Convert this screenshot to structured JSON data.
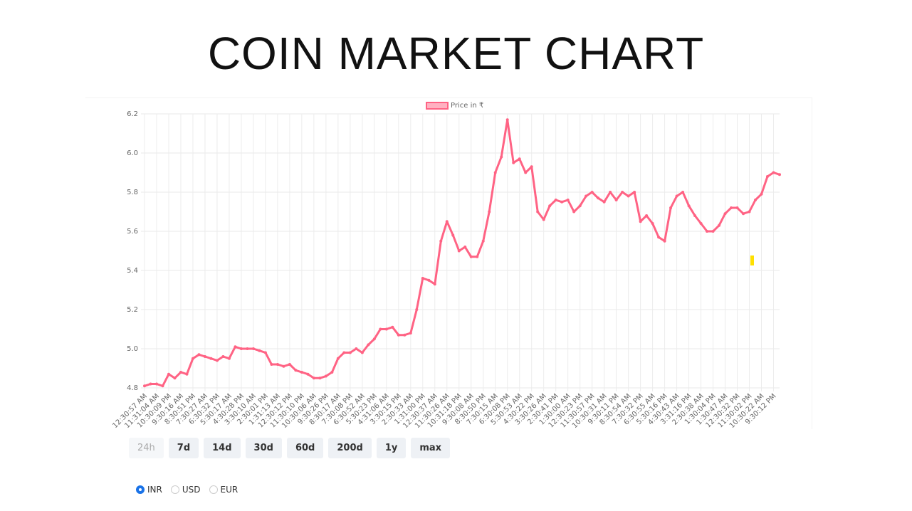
{
  "header": {
    "title": "COIN MARKET CHART"
  },
  "chart_data": {
    "type": "line",
    "series": [
      {
        "name": "Price in ₹",
        "color": "#ff6384",
        "values": [
          4.81,
          4.82,
          4.82,
          4.81,
          4.87,
          4.85,
          4.88,
          4.87,
          4.95,
          4.97,
          4.96,
          4.95,
          4.94,
          4.96,
          4.95,
          5.01,
          5.0,
          5.0,
          5.0,
          4.99,
          4.98,
          4.92,
          4.92,
          4.91,
          4.92,
          4.89,
          4.88,
          4.87,
          4.85,
          4.85,
          4.86,
          4.88,
          4.95,
          4.98,
          4.98,
          5.0,
          4.98,
          5.02,
          5.05,
          5.1,
          5.1,
          5.11,
          5.07,
          5.07,
          5.08,
          5.2,
          5.36,
          5.35,
          5.33,
          5.55,
          5.65,
          5.58,
          5.5,
          5.52,
          5.47,
          5.47,
          5.55,
          5.7,
          5.9,
          5.98,
          6.17,
          5.95,
          5.97,
          5.9,
          5.93,
          5.7,
          5.66,
          5.73,
          5.76,
          5.75,
          5.76,
          5.7,
          5.73,
          5.78,
          5.8,
          5.77,
          5.75,
          5.8,
          5.76,
          5.8,
          5.78,
          5.8,
          5.65,
          5.68,
          5.64,
          5.57,
          5.55,
          5.72,
          5.78,
          5.8,
          5.73,
          5.68,
          5.64,
          5.6,
          5.6,
          5.63,
          5.69,
          5.72,
          5.72,
          5.69,
          5.7,
          5.76,
          5.79,
          5.88,
          5.9,
          5.89
        ]
      }
    ],
    "categories": [
      "12:30:57 AM",
      null,
      "11:31:04 AM",
      null,
      "10:30:09 PM",
      null,
      "9:30:16 AM",
      null,
      "8:30:51 PM",
      null,
      "7:30:27 AM",
      null,
      "6:30:32 PM",
      null,
      "5:30:17 AM",
      null,
      "4:30:28 PM",
      null,
      "3:30:10 AM",
      null,
      "2:30:01 PM",
      null,
      "1:31:13 AM",
      null,
      "12:30:12 PM",
      null,
      "11:30:10 PM",
      null,
      "10:30:06 AM",
      null,
      "9:30:26 PM",
      null,
      "8:30:17 AM",
      null,
      "7:30:08 PM",
      null,
      "6:30:52 AM",
      null,
      "5:30:23 PM",
      null,
      "4:31:06 AM",
      null,
      "3:30:15 PM",
      null,
      "2:30:33 AM",
      null,
      "1:31:00 PM",
      null,
      "12:30:37 AM",
      null,
      "11:30:26 AM",
      null,
      "10:31:18 PM",
      null,
      "9:30:08 AM",
      null,
      "8:30:50 PM",
      null,
      "7:30:15 AM",
      null,
      "6:30:08 PM",
      null,
      "5:30:53 AM",
      null,
      "4:30:22 PM",
      null,
      "3:30:26 AM",
      null,
      "2:30:41 PM",
      null,
      "1:30:00 AM",
      null,
      "12:30:23 PM",
      null,
      "11:30:57 PM",
      null,
      "10:30:31 AM",
      null,
      "9:30:11 PM",
      null,
      "8:30:54 AM",
      null,
      "7:30:32 PM",
      null,
      "6:30:55 AM",
      null,
      "5:30:16 PM",
      null,
      "4:30:43 AM",
      null,
      "3:31:16 PM",
      null,
      "2:30:38 AM",
      null,
      "1:30:04 PM",
      null,
      "1:30:47 AM",
      null,
      "12:30:32 PM",
      null,
      "11:30:02 PM",
      null,
      "10:30:22 AM",
      null,
      "9:30:12 PM",
      null
    ],
    "ylim": [
      4.8,
      6.2
    ],
    "yticks": [
      4.8,
      {
        "value": 5,
        "label": "5.0"
      },
      5.2,
      5.4,
      5.6,
      5.8,
      {
        "value": 6,
        "label": "6.0"
      },
      6.2
    ],
    "grid": true,
    "legend": "top"
  },
  "controls": {
    "ranges": [
      "24h",
      "7d",
      "14d",
      "30d",
      "60d",
      "200d",
      "1y",
      "max"
    ],
    "currencies": [
      "INR",
      "USD",
      "EUR"
    ]
  }
}
